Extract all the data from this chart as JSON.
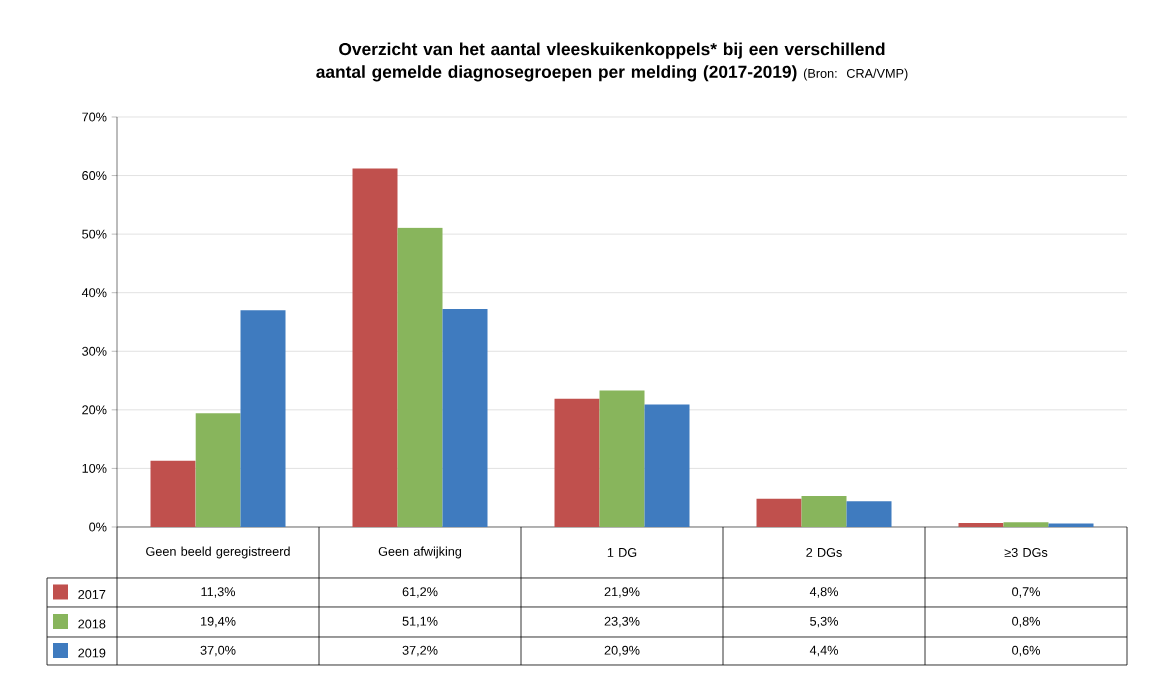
{
  "chart_data": {
    "type": "bar",
    "title": "Overzicht van het aantal vleeskuikenkoppels* bij een verschillend aantal gemelde diagnosegroepen per melding (2017-2019)",
    "annotations": [
      "(Bron: CRA/VMP)"
    ],
    "categories": [
      "Geen beeld geregistreerd",
      "Geen afwijking",
      "1 DG",
      "2 DGs",
      "≥3 DGs"
    ],
    "series": [
      {
        "name": "2017",
        "color": "#c0504d",
        "values": [
          11.3,
          61.2,
          21.9,
          4.8,
          0.7
        ],
        "value_labels": [
          "11,3%",
          "61,2%",
          "21,9%",
          "4,8%",
          "0,7%"
        ]
      },
      {
        "name": "2018",
        "color": "#88b55c",
        "values": [
          19.4,
          51.1,
          23.3,
          5.3,
          0.8
        ],
        "value_labels": [
          "19,4%",
          "51,1%",
          "23,3%",
          "5,3%",
          "0,8%"
        ]
      },
      {
        "name": "2019",
        "color": "#3f7bbf",
        "values": [
          37.0,
          37.2,
          20.9,
          4.4,
          0.6
        ],
        "value_labels": [
          "37,0%",
          "37,2%",
          "20,9%",
          "4,4%",
          "0,6%"
        ]
      }
    ],
    "ylim": [
      0,
      70
    ],
    "yticks": [
      {
        "value": 0,
        "label": "0%"
      },
      {
        "value": 10,
        "label": "10%"
      },
      {
        "value": 20,
        "label": "20%"
      },
      {
        "value": 30,
        "label": "30%"
      },
      {
        "value": 40,
        "label": "40%"
      },
      {
        "value": 50,
        "label": "50%"
      },
      {
        "value": 60,
        "label": "60%"
      },
      {
        "value": 70,
        "label": "70%"
      }
    ],
    "grid": "y",
    "legend": "bottom left"
  }
}
